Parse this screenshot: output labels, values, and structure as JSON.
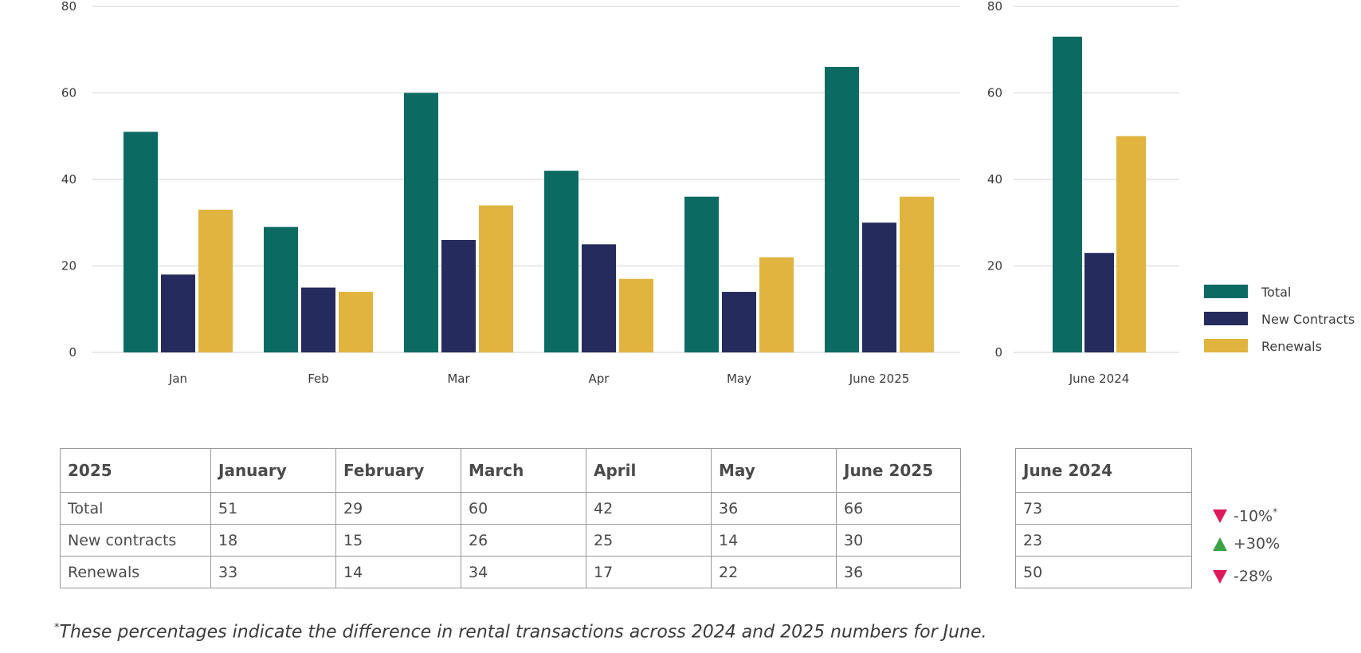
{
  "colors": {
    "total": "#0b6b63",
    "new": "#252b5c",
    "renewals": "#e0b43f",
    "grid": "#e2e2e2",
    "down": "#e0195a",
    "up": "#3ca345"
  },
  "chart_data": [
    {
      "type": "bar",
      "categories": [
        "Jan",
        "Feb",
        "Mar",
        "Apr",
        "May",
        "June 2025"
      ],
      "series": [
        {
          "name": "Total",
          "values": [
            51,
            29,
            60,
            42,
            36,
            66
          ]
        },
        {
          "name": "New Contracts",
          "values": [
            18,
            15,
            26,
            25,
            14,
            30
          ]
        },
        {
          "name": "Renewals",
          "values": [
            33,
            14,
            34,
            17,
            22,
            36
          ]
        }
      ],
      "ylim": [
        0,
        80
      ],
      "yticks": [
        0,
        20,
        40,
        60,
        80
      ],
      "grid": true
    },
    {
      "type": "bar",
      "categories": [
        "June 2024"
      ],
      "series": [
        {
          "name": "Total",
          "values": [
            73
          ]
        },
        {
          "name": "New Contracts",
          "values": [
            23
          ]
        },
        {
          "name": "Renewals",
          "values": [
            50
          ]
        }
      ],
      "ylim": [
        0,
        80
      ],
      "yticks": [
        0,
        20,
        40,
        60,
        80
      ],
      "grid": true,
      "legend": "right"
    }
  ],
  "legend": {
    "items": [
      "Total",
      "New Contracts",
      "Renewals"
    ]
  },
  "table": {
    "headers": [
      "2025",
      "January",
      "February",
      "March",
      "April",
      "May",
      "June 2025"
    ],
    "rows": [
      [
        "Total",
        "51",
        "29",
        "60",
        "42",
        "36",
        "66"
      ],
      [
        "New contracts",
        "18",
        "15",
        "26",
        "25",
        "14",
        "30"
      ],
      [
        "Renewals",
        "33",
        "14",
        "34",
        "17",
        "22",
        "36"
      ]
    ]
  },
  "june2024_table": {
    "header": "June 2024",
    "values": [
      "73",
      "23",
      "50"
    ]
  },
  "changes": [
    {
      "text": "-10%",
      "direction": "down",
      "star": "*"
    },
    {
      "text": "+30%",
      "direction": "up",
      "star": ""
    },
    {
      "text": "-28%",
      "direction": "down",
      "star": ""
    }
  ],
  "footnote": {
    "star": "*",
    "text": "These percentages indicate the difference in rental transactions across 2024 and 2025 numbers for June."
  }
}
